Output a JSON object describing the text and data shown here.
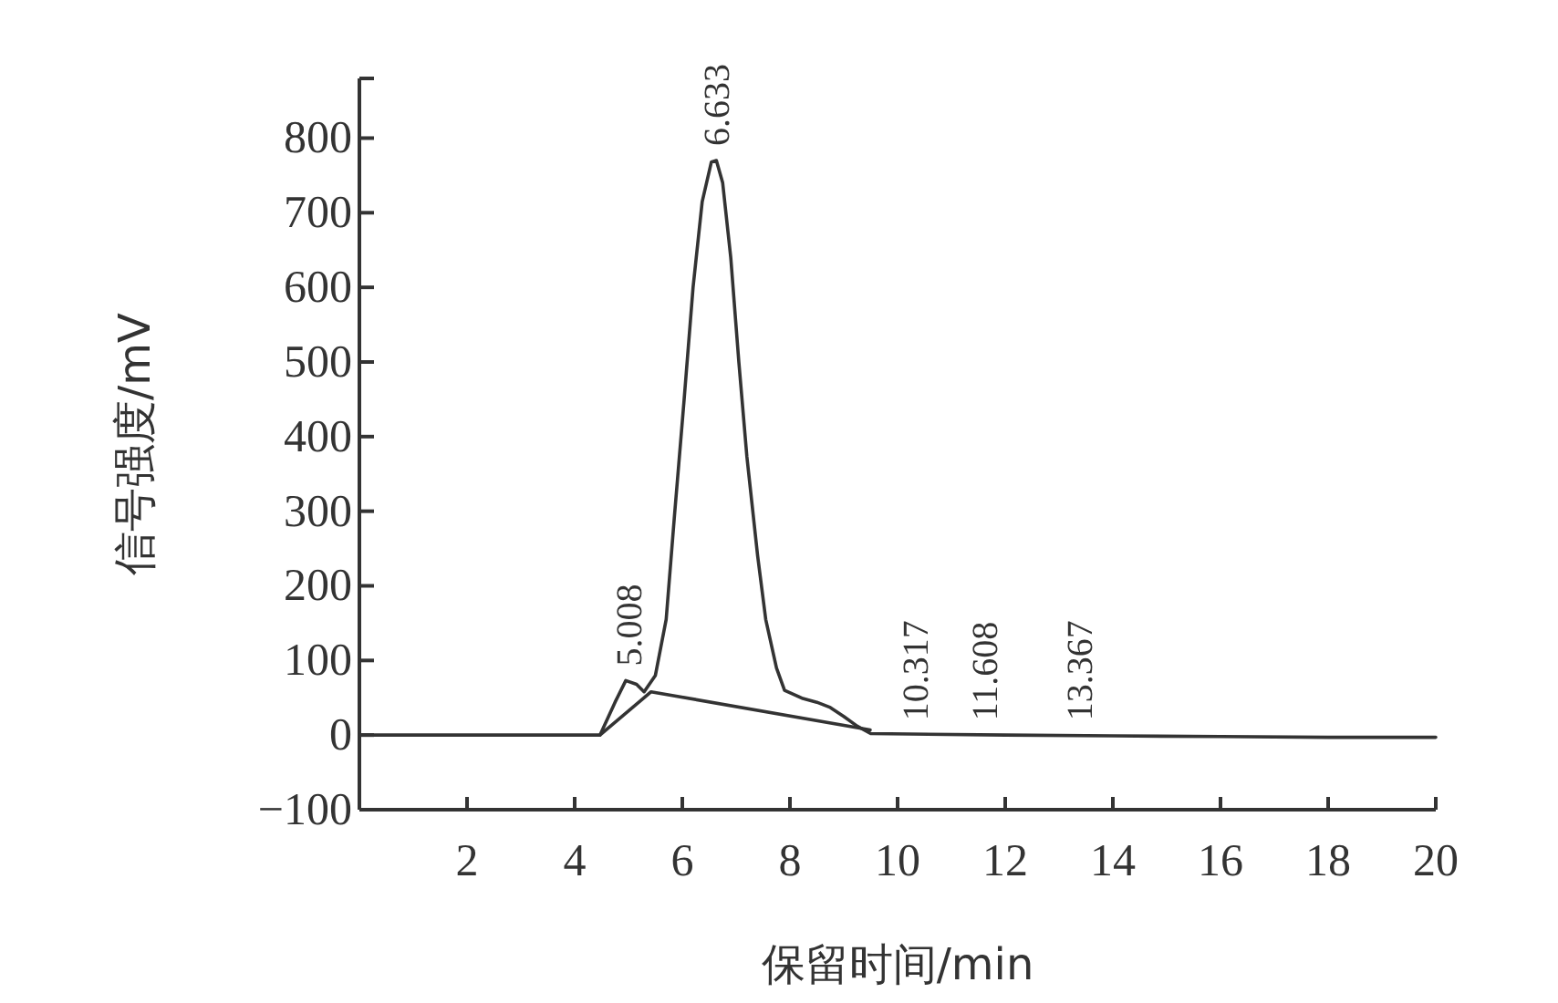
{
  "chart_data": {
    "type": "line",
    "xlabel": "保留时间/min",
    "ylabel": "信号强度/mV",
    "xlim": [
      0,
      20
    ],
    "xticks": [
      2,
      4,
      6,
      8,
      10,
      12,
      14,
      16,
      18,
      20
    ],
    "ylim": [
      -100,
      880
    ],
    "yticks": [
      -100,
      0,
      100,
      200,
      300,
      400,
      500,
      600,
      700,
      800,
      {
        "value": 880,
        "label": null
      }
    ],
    "grid": false,
    "marker": "none",
    "line_style": "solid",
    "series": [
      {
        "color": "#333333",
        "x": [
          0,
          4.47,
          4.75,
          4.95,
          5.15,
          5.29,
          5.5,
          5.7,
          5.85,
          6.03,
          6.2,
          6.37,
          6.54,
          6.633,
          6.75,
          6.9,
          7.05,
          7.2,
          7.4,
          7.55,
          7.75,
          7.9,
          8.24,
          8.5,
          8.75,
          9.0,
          9.25,
          9.5,
          12,
          14,
          16,
          18,
          20
        ],
        "values": [
          0,
          0,
          44,
          73,
          68,
          58,
          80,
          155,
          290,
          446,
          600,
          715,
          768,
          770,
          740,
          640,
          500,
          373,
          240,
          155,
          90,
          60,
          49,
          44,
          37,
          25,
          12,
          2,
          0,
          -1,
          -2,
          -3,
          -3
        ]
      },
      {
        "color": "#333333",
        "x": [
          4.47,
          5.42,
          9.49
        ],
        "values": [
          0,
          58,
          7
        ]
      }
    ],
    "annotations": [
      {
        "text": "5.008",
        "x": 5.008,
        "y": 73
      },
      {
        "text": "6.633",
        "x": 6.633,
        "y": 770
      },
      {
        "text": "10.317",
        "x": 10.317,
        "y": 0
      },
      {
        "text": "11.608",
        "x": 11.608,
        "y": 0
      },
      {
        "text": "13.367",
        "x": 13.367,
        "y": 0
      }
    ]
  }
}
